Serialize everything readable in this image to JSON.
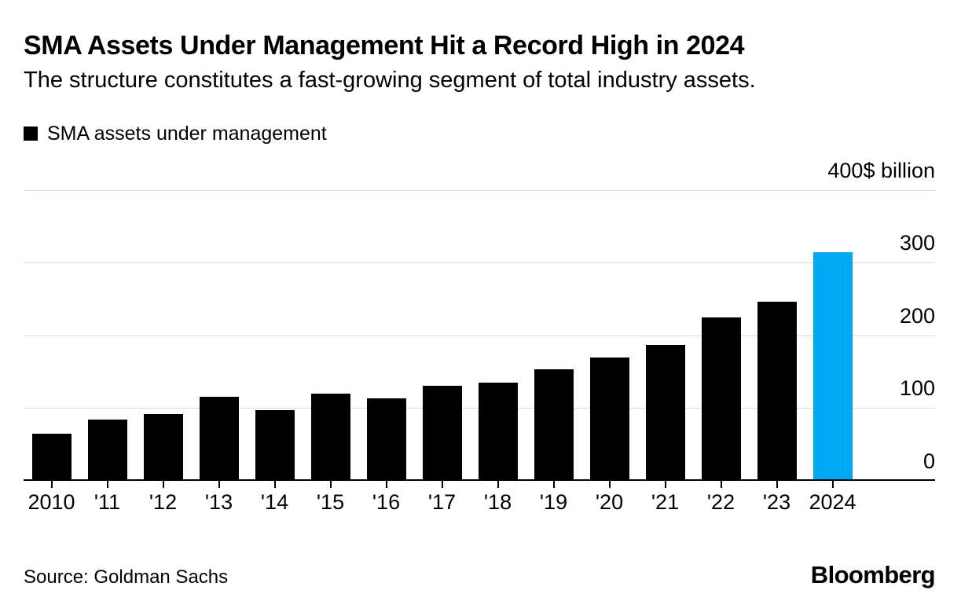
{
  "header": {
    "title": "SMA Assets Under Management Hit a Record High in 2024",
    "subtitle": "The structure constitutes a fast-growing segment of total industry assets."
  },
  "legend": {
    "label": "SMA assets under management",
    "swatch_color": "#000000"
  },
  "chart_data": {
    "type": "bar",
    "title": "SMA Assets Under Management Hit a Record High in 2024",
    "subtitle": "The structure constitutes a fast-growing segment of total industry assets.",
    "series_name": "SMA assets under management",
    "categories": [
      "2010",
      "'11",
      "'12",
      "'13",
      "'14",
      "'15",
      "'16",
      "'17",
      "'18",
      "'19",
      "'20",
      "'21",
      "'22",
      "'23",
      "2024"
    ],
    "values": [
      65,
      84,
      92,
      116,
      97,
      120,
      114,
      131,
      135,
      153,
      170,
      187,
      225,
      246,
      315
    ],
    "unit": "$ billion",
    "xlabel": "",
    "ylabel": "$ billion",
    "ylim": [
      0,
      400
    ],
    "yticks": [
      0,
      100,
      200,
      300,
      400
    ],
    "ytick_labels": [
      "0",
      "100",
      "200",
      "300",
      "400$ billion"
    ],
    "grid": true,
    "gridline_color": "#d9d9d9",
    "axis_color": "#000000",
    "bar_color": "#000000",
    "highlight_index": 14,
    "highlight_color": "#00a9f4",
    "legend_position": "top-left"
  },
  "footer": {
    "source": "Source: Goldman Sachs",
    "brand": "Bloomberg"
  }
}
